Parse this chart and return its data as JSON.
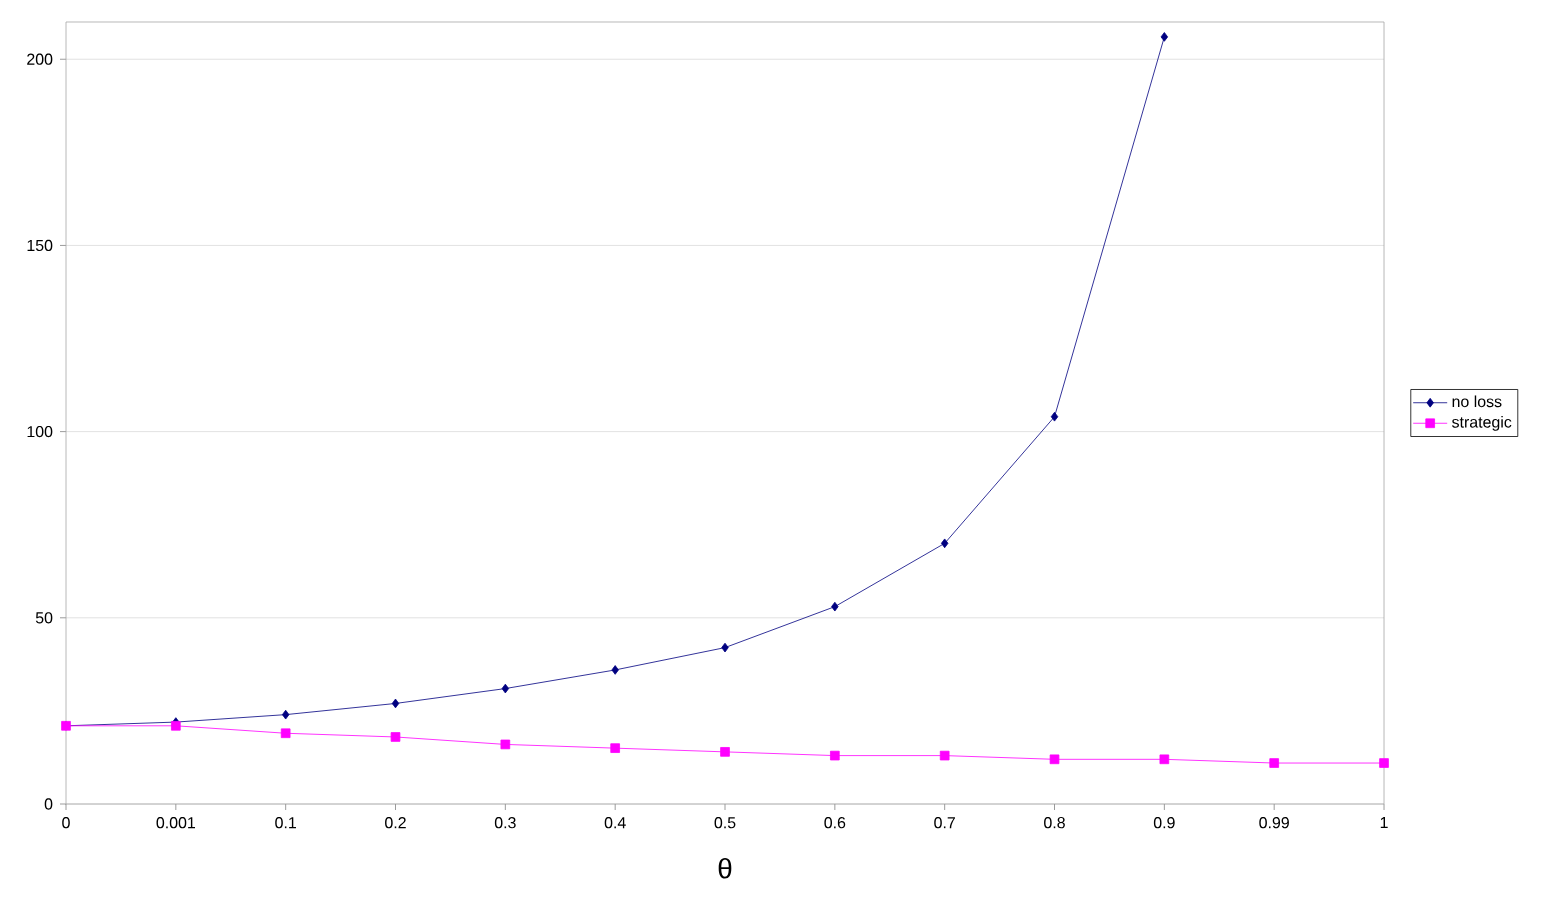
{
  "chart_data": {
    "type": "line",
    "xlabel": "θ",
    "categories": [
      "0",
      "0.001",
      "0.1",
      "0.2",
      "0.3",
      "0.4",
      "0.5",
      "0.6",
      "0.7",
      "0.8",
      "0.9",
      "0.99",
      "1"
    ],
    "series": [
      {
        "name": "no loss",
        "color": "#000080",
        "marker": "diamond",
        "values": [
          21,
          22,
          24,
          27,
          31,
          36,
          42,
          53,
          70,
          104,
          206,
          null,
          null
        ]
      },
      {
        "name": "strategic",
        "color": "#ff00ff",
        "marker": "square",
        "values": [
          21,
          21,
          19,
          18,
          16,
          15,
          14,
          13,
          13,
          12,
          12,
          11,
          11
        ]
      }
    ],
    "ylim": [
      0,
      210
    ],
    "yticks": [
      0,
      50,
      100,
      150,
      200
    ],
    "grid": "y",
    "legend": "right"
  }
}
